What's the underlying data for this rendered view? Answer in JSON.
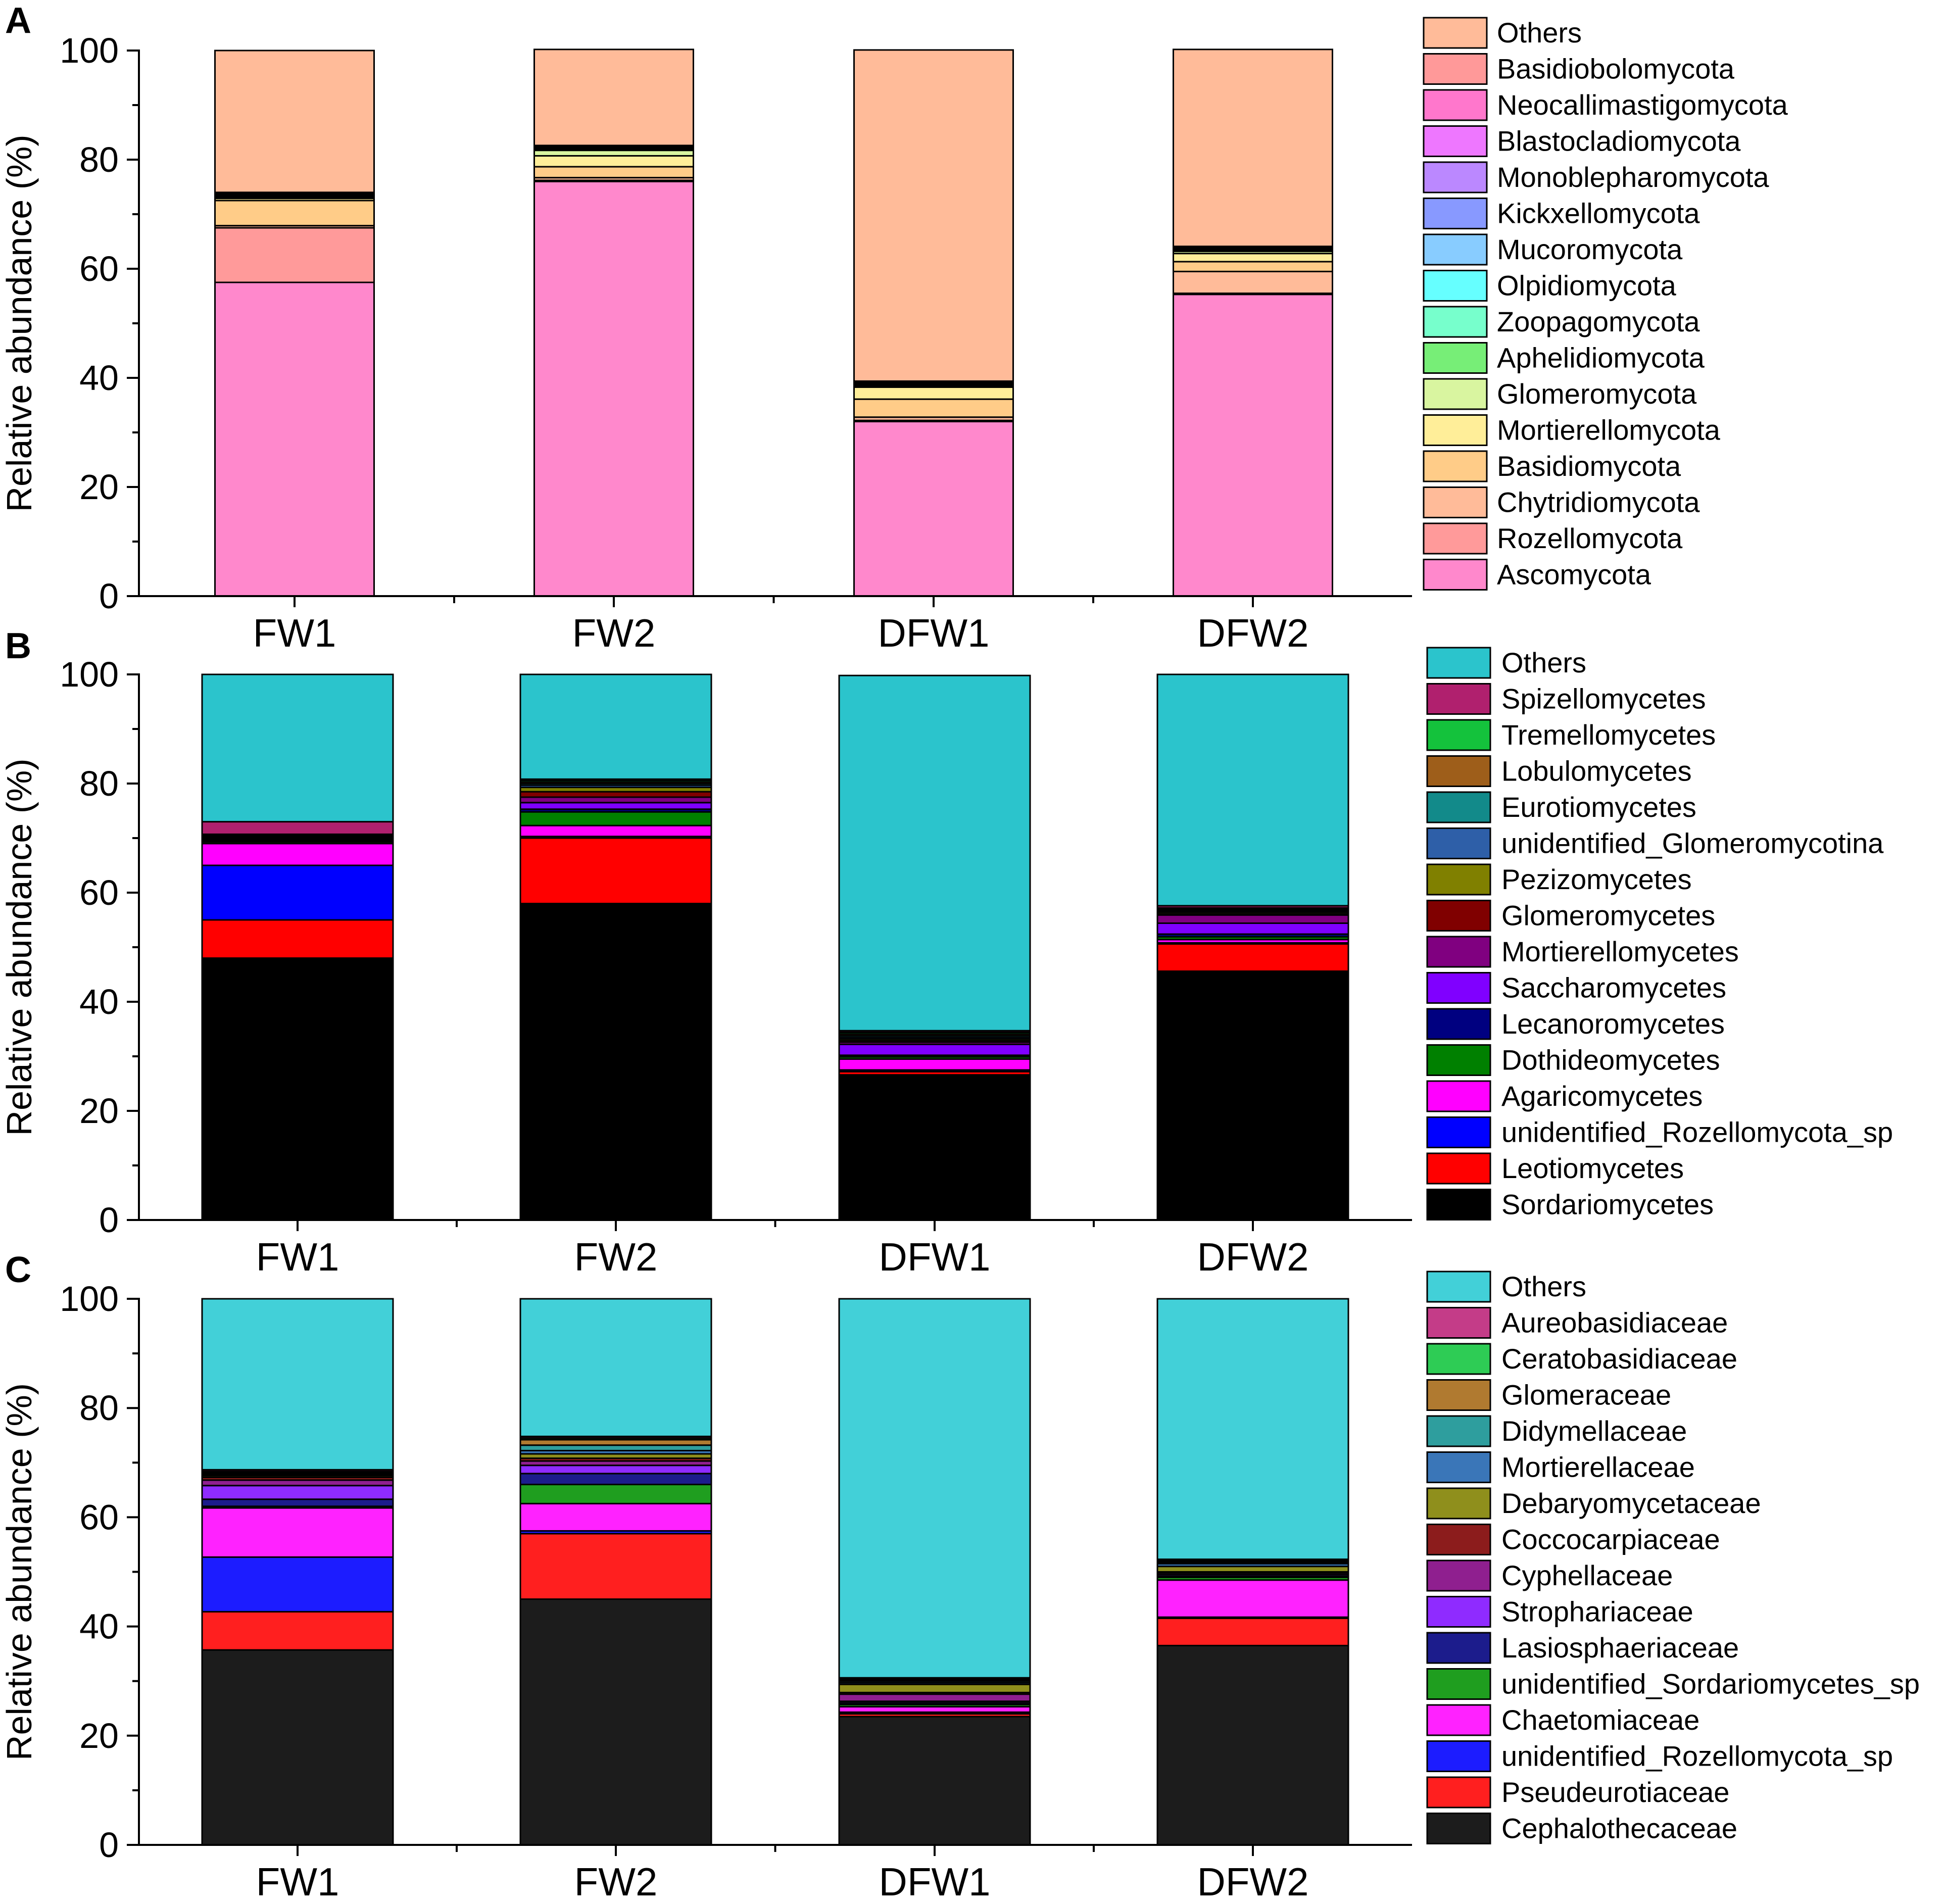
{
  "chart_data": [
    {
      "type": "bar",
      "panel_label": "A",
      "ylabel": "Relative abundance (%)",
      "ylim": [
        0,
        100
      ],
      "yticks": [
        "0",
        "20",
        "40",
        "60",
        "80",
        "100"
      ],
      "categories": [
        "FW1",
        "FW2",
        "DFW1",
        "DFW2"
      ],
      "series": [
        {
          "name": "Ascomycota",
          "color": "#ff88cc",
          "values": [
            57.5,
            76.0,
            32.0,
            55.3
          ]
        },
        {
          "name": "Rozellomycota",
          "color": "#ff9a9a",
          "values": [
            10.0,
            0.2,
            0.2,
            0.2
          ]
        },
        {
          "name": "Chytridiomycota",
          "color": "#ffbb99",
          "values": [
            0.4,
            0.5,
            0.6,
            4.0
          ]
        },
        {
          "name": "Basidiomycota",
          "color": "#ffcc88",
          "values": [
            4.6,
            2.0,
            3.3,
            1.8
          ]
        },
        {
          "name": "Mortierellomycota",
          "color": "#ffee99",
          "values": [
            0.4,
            2.0,
            2.2,
            1.5
          ]
        },
        {
          "name": "Glomeromycota",
          "color": "#d9f5a0",
          "values": [
            0.2,
            1.0,
            0.2,
            0.4
          ]
        },
        {
          "name": "Aphelidiomycota",
          "color": "#77ee77",
          "values": [
            0.1,
            0.1,
            0.1,
            0.1
          ]
        },
        {
          "name": "Zoopagomycota",
          "color": "#77ffcc",
          "values": [
            0.1,
            0.1,
            0.1,
            0.1
          ]
        },
        {
          "name": "Olpidiomycota",
          "color": "#66ffff",
          "values": [
            0.1,
            0.1,
            0.1,
            0.1
          ]
        },
        {
          "name": "Mucoromycota",
          "color": "#88ccff",
          "values": [
            0.1,
            0.1,
            0.1,
            0.1
          ]
        },
        {
          "name": "Kickxellomycota",
          "color": "#8899ff",
          "values": [
            0.1,
            0.1,
            0.1,
            0.1
          ]
        },
        {
          "name": "Monoblepharomycota",
          "color": "#bb88ff",
          "values": [
            0.1,
            0.1,
            0.1,
            0.1
          ]
        },
        {
          "name": "Blastocladiomycota",
          "color": "#ee77ff",
          "values": [
            0.1,
            0.1,
            0.1,
            0.1
          ]
        },
        {
          "name": "Neocallimastigomycota",
          "color": "#ff77cc",
          "values": [
            0.1,
            0.1,
            0.1,
            0.1
          ]
        },
        {
          "name": "Basidiobolomycota",
          "color": "#ff9999",
          "values": [
            0.1,
            0.1,
            0.1,
            0.1
          ]
        },
        {
          "name": "Others",
          "color": "#ffbb99",
          "values": [
            26.0,
            17.6,
            60.7,
            36.1
          ]
        }
      ]
    },
    {
      "type": "bar",
      "panel_label": "B",
      "ylabel": "Relative abundance (%)",
      "ylim": [
        0,
        100
      ],
      "yticks": [
        "0",
        "20",
        "40",
        "60",
        "80",
        "100"
      ],
      "categories": [
        "FW1",
        "FW2",
        "DFW1",
        "DFW2"
      ],
      "series": [
        {
          "name": "Sordariomycetes",
          "color": "#000000",
          "values": [
            48.0,
            58.0,
            26.6,
            45.6
          ]
        },
        {
          "name": "Leotiomycetes",
          "color": "#ff0000",
          "values": [
            7.0,
            12.0,
            0.6,
            5.0
          ]
        },
        {
          "name": "unidentified_Rozellomycota_sp",
          "color": "#0000ff",
          "values": [
            10.0,
            0.3,
            0.3,
            0.2
          ]
        },
        {
          "name": "Agaricomycetes",
          "color": "#ff00ff",
          "values": [
            4.0,
            2.0,
            2.0,
            0.6
          ]
        },
        {
          "name": "Dothideomycetes",
          "color": "#008000",
          "values": [
            0.3,
            2.5,
            0.4,
            0.5
          ]
        },
        {
          "name": "Lecanoromycetes",
          "color": "#000080",
          "values": [
            0.2,
            0.5,
            0.3,
            0.5
          ]
        },
        {
          "name": "Saccharomycetes",
          "color": "#8000ff",
          "values": [
            0.2,
            1.2,
            2.0,
            2.0
          ]
        },
        {
          "name": "Mortierellomycetes",
          "color": "#800080",
          "values": [
            0.2,
            1.0,
            0.4,
            1.5
          ]
        },
        {
          "name": "Glomeromycetes",
          "color": "#800000",
          "values": [
            0.2,
            1.0,
            0.3,
            0.2
          ]
        },
        {
          "name": "Pezizomycetes",
          "color": "#808000",
          "values": [
            0.2,
            0.8,
            0.3,
            0.3
          ]
        },
        {
          "name": "unidentified_Glomeromycotina",
          "color": "#2e5fa8",
          "values": [
            0.1,
            0.4,
            0.3,
            0.2
          ]
        },
        {
          "name": "Eurotiomycetes",
          "color": "#128a8a",
          "values": [
            0.1,
            0.3,
            0.3,
            0.2
          ]
        },
        {
          "name": "Lobulomycetes",
          "color": "#9e5e1a",
          "values": [
            0.1,
            0.3,
            0.3,
            0.2
          ]
        },
        {
          "name": "Tremellomycetes",
          "color": "#14c23c",
          "values": [
            0.1,
            0.3,
            0.3,
            0.2
          ]
        },
        {
          "name": "Spizellomycetes",
          "color": "#b0206e",
          "values": [
            2.3,
            0.2,
            0.3,
            0.4
          ]
        },
        {
          "name": "Others",
          "color": "#2bc4cc",
          "values": [
            27.0,
            19.2,
            65.1,
            42.4
          ]
        }
      ]
    },
    {
      "type": "bar",
      "panel_label": "C",
      "ylabel": "Relative abundance (%)",
      "ylim": [
        0,
        100
      ],
      "yticks": [
        "0",
        "20",
        "40",
        "60",
        "80",
        "100"
      ],
      "categories": [
        "FW1",
        "FW2",
        "DFW1",
        "DFW2"
      ],
      "series": [
        {
          "name": "Cephalothecaceae",
          "color": "#1c1c1c",
          "values": [
            35.7,
            45.0,
            23.5,
            36.5
          ]
        },
        {
          "name": "Pseudeurotiaceae",
          "color": "#ff1f1f",
          "values": [
            7.0,
            12.0,
            0.5,
            5.0
          ]
        },
        {
          "name": "unidentified_Rozellomycota_sp",
          "color": "#1c1cff",
          "values": [
            10.0,
            0.5,
            0.3,
            0.2
          ]
        },
        {
          "name": "Chaetomiaceae",
          "color": "#ff22ff",
          "values": [
            9.0,
            5.0,
            1.0,
            6.8
          ]
        },
        {
          "name": "unidentified_Sordariomycetes_sp",
          "color": "#1f9e1f",
          "values": [
            0.3,
            3.5,
            0.4,
            0.5
          ]
        },
        {
          "name": "Lasiosphaeriaceae",
          "color": "#1c1c8c",
          "values": [
            1.3,
            2.0,
            0.3,
            0.2
          ]
        },
        {
          "name": "Strophariaceae",
          "color": "#8f2bff",
          "values": [
            2.5,
            1.5,
            0.3,
            0.3
          ]
        },
        {
          "name": "Cyphellaceae",
          "color": "#8f1f8f",
          "values": [
            1.0,
            0.8,
            1.3,
            0.3
          ]
        },
        {
          "name": "Coccocarpiaceae",
          "color": "#8c1c1c",
          "values": [
            0.5,
            0.5,
            0.3,
            0.2
          ]
        },
        {
          "name": "Debaryomycetaceae",
          "color": "#8f8f1c",
          "values": [
            0.3,
            0.8,
            1.5,
            1.0
          ]
        },
        {
          "name": "Mortierellaceae",
          "color": "#3a76b8",
          "values": [
            0.2,
            0.6,
            0.3,
            0.5
          ]
        },
        {
          "name": "Didymellaceae",
          "color": "#2e9e9e",
          "values": [
            0.2,
            1.0,
            0.3,
            0.2
          ]
        },
        {
          "name": "Glomeraceae",
          "color": "#b07a30",
          "values": [
            0.2,
            1.0,
            0.2,
            0.2
          ]
        },
        {
          "name": "Ceratobasidiaceae",
          "color": "#2ecc55",
          "values": [
            0.2,
            0.3,
            0.2,
            0.2
          ]
        },
        {
          "name": "Aureobasidiaceae",
          "color": "#c43c88",
          "values": [
            0.3,
            0.3,
            0.2,
            0.2
          ]
        },
        {
          "name": "Others",
          "color": "#42d0d8",
          "values": [
            31.3,
            25.2,
            69.4,
            47.7
          ]
        }
      ]
    }
  ]
}
